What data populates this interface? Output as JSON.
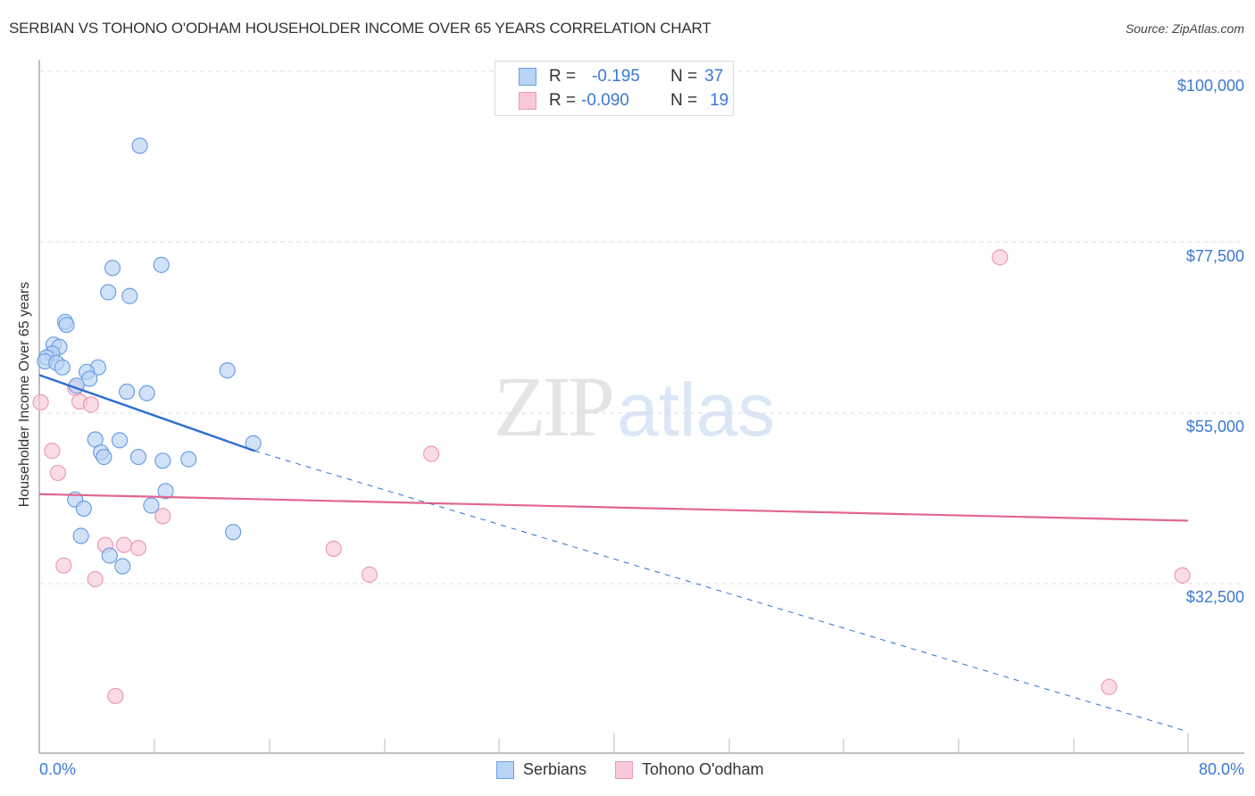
{
  "header": {
    "title": "SERBIAN VS TOHONO O'ODHAM HOUSEHOLDER INCOME OVER 65 YEARS CORRELATION CHART",
    "source": "Source: ZipAtlas.com"
  },
  "legend": {
    "serbians": {
      "r_label": "R =",
      "r_value": "-0.195",
      "n_label": "N =",
      "n_value": "37"
    },
    "tohono": {
      "r_label": "R =",
      "r_value": "-0.090",
      "n_label": "N =",
      "n_value": "19"
    }
  },
  "bottom_legend": {
    "serbians": "Serbians",
    "tohono": "Tohono O'odham"
  },
  "axes": {
    "ylabel": "Householder Income Over 65 years",
    "yticks": [
      "$100,000",
      "$77,500",
      "$55,000",
      "$32,500"
    ],
    "xticks": {
      "left": "0.0%",
      "right": "80.0%"
    }
  },
  "watermark": {
    "zip": "ZIP",
    "atlas": "atlas"
  },
  "colors": {
    "serbians_fill": "#b9d3f5",
    "serbians_stroke": "#6b9ee6",
    "serbians_line": "#2f6fd0",
    "tohono_fill": "#f9c9d8",
    "tohono_stroke": "#ec9ab5",
    "tohono_line": "#e2668f",
    "tick_text": "#3b78d4"
  },
  "chart_data": {
    "type": "scatter",
    "title": "SERBIAN VS TOHONO O'ODHAM HOUSEHOLDER INCOME OVER 65 YEARS CORRELATION CHART",
    "xlabel": "",
    "ylabel": "Householder Income Over 65 years",
    "xlim": [
      0,
      80
    ],
    "ylim": [
      13000,
      103000
    ],
    "x_tick_labels": [
      "0.0%",
      "80.0%"
    ],
    "y_tick_labels": [
      "$32,500",
      "$55,000",
      "$77,500",
      "$100,000"
    ],
    "grid": true,
    "legend_position": "top-center",
    "series": [
      {
        "name": "Serbians",
        "r": -0.195,
        "n": 37,
        "points": [
          [
            7.0,
            90200
          ],
          [
            8.5,
            74500
          ],
          [
            5.1,
            74100
          ],
          [
            4.8,
            70900
          ],
          [
            6.3,
            70400
          ],
          [
            1.8,
            67000
          ],
          [
            1.9,
            66600
          ],
          [
            1.0,
            64000
          ],
          [
            1.4,
            63700
          ],
          [
            0.9,
            62800
          ],
          [
            0.5,
            62300
          ],
          [
            0.4,
            61800
          ],
          [
            1.2,
            61600
          ],
          [
            1.6,
            61000
          ],
          [
            4.1,
            61000
          ],
          [
            3.3,
            60400
          ],
          [
            13.1,
            60600
          ],
          [
            3.5,
            59500
          ],
          [
            2.6,
            58600
          ],
          [
            6.1,
            57800
          ],
          [
            7.5,
            57600
          ],
          [
            3.9,
            51500
          ],
          [
            5.6,
            51400
          ],
          [
            4.3,
            49800
          ],
          [
            4.5,
            49200
          ],
          [
            6.9,
            49200
          ],
          [
            8.6,
            48700
          ],
          [
            10.4,
            48900
          ],
          [
            14.9,
            51000
          ],
          [
            8.8,
            44700
          ],
          [
            2.5,
            43600
          ],
          [
            3.1,
            42400
          ],
          [
            7.8,
            42800
          ],
          [
            2.9,
            38800
          ],
          [
            13.5,
            39300
          ],
          [
            4.9,
            36200
          ],
          [
            5.8,
            34800
          ]
        ],
        "trend": {
          "x0": 0,
          "y0": 60000,
          "x_solid_end": 15,
          "y_solid_end": 50000,
          "x1": 80,
          "y1": 13000,
          "extension_style": "dashed"
        }
      },
      {
        "name": "Tohono O'odham",
        "r": -0.09,
        "n": 19,
        "points": [
          [
            0.1,
            56400
          ],
          [
            2.8,
            56500
          ],
          [
            3.6,
            56100
          ],
          [
            2.5,
            58300
          ],
          [
            0.9,
            50000
          ],
          [
            1.3,
            47100
          ],
          [
            27.3,
            49600
          ],
          [
            8.6,
            41400
          ],
          [
            4.6,
            37600
          ],
          [
            5.9,
            37600
          ],
          [
            6.9,
            37200
          ],
          [
            20.5,
            37100
          ],
          [
            1.7,
            34900
          ],
          [
            23.0,
            33700
          ],
          [
            3.9,
            33100
          ],
          [
            66.9,
            75500
          ],
          [
            79.6,
            33600
          ],
          [
            74.5,
            18900
          ],
          [
            5.3,
            17700
          ]
        ],
        "trend": {
          "x0": 0,
          "y0": 44300,
          "x1": 80,
          "y1": 40800,
          "style": "solid"
        }
      }
    ]
  }
}
